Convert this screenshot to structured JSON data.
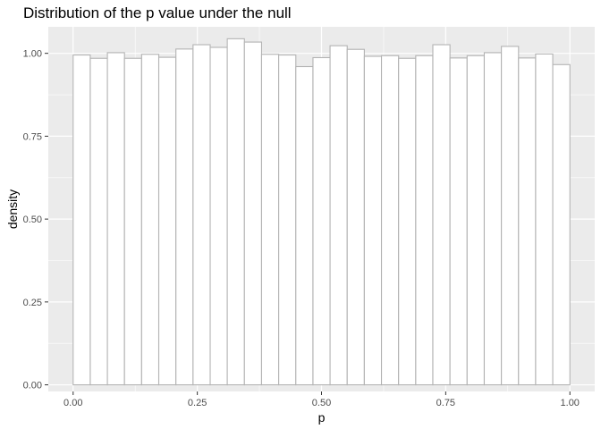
{
  "chart_data": {
    "type": "bar",
    "title": "Distribution of the p value under the null",
    "xlabel": "p",
    "ylabel": "density",
    "xlim": [
      -0.05,
      1.05
    ],
    "ylim": [
      -0.02,
      1.08
    ],
    "x_ticks": [
      {
        "value": 0.0,
        "label": "0.00"
      },
      {
        "value": 0.25,
        "label": "0.25"
      },
      {
        "value": 0.5,
        "label": "0.50"
      },
      {
        "value": 0.75,
        "label": "0.75"
      },
      {
        "value": 1.0,
        "label": "1.00"
      }
    ],
    "y_ticks": [
      {
        "value": 0.0,
        "label": "0.00"
      },
      {
        "value": 0.25,
        "label": "0.25"
      },
      {
        "value": 0.5,
        "label": "0.50"
      },
      {
        "value": 0.75,
        "label": "0.75"
      },
      {
        "value": 1.0,
        "label": "1.00"
      }
    ],
    "bin_edges": [
      0.0,
      0.0345,
      0.069,
      0.1034,
      0.1379,
      0.1724,
      0.2069,
      0.2414,
      0.2759,
      0.3103,
      0.3448,
      0.3793,
      0.4138,
      0.4483,
      0.4828,
      0.5172,
      0.5517,
      0.5862,
      0.6207,
      0.6552,
      0.6897,
      0.7241,
      0.7586,
      0.7931,
      0.8276,
      0.8621,
      0.8966,
      0.931,
      0.9655,
      1.0
    ],
    "values": [
      0.995,
      0.985,
      1.002,
      0.985,
      0.997,
      0.988,
      1.013,
      1.026,
      1.018,
      1.044,
      1.034,
      0.997,
      0.995,
      0.96,
      0.987,
      1.023,
      1.012,
      0.991,
      0.993,
      0.985,
      0.993,
      1.026,
      0.986,
      0.993,
      1.002,
      1.021,
      0.986,
      0.998,
      0.966
    ],
    "grid": true,
    "colors": {
      "panel": "#ebebeb",
      "grid_major": "#ffffff",
      "bar_fill": "#ffffff",
      "bar_outline": "#b3b3b3",
      "tick": "#333333"
    }
  }
}
